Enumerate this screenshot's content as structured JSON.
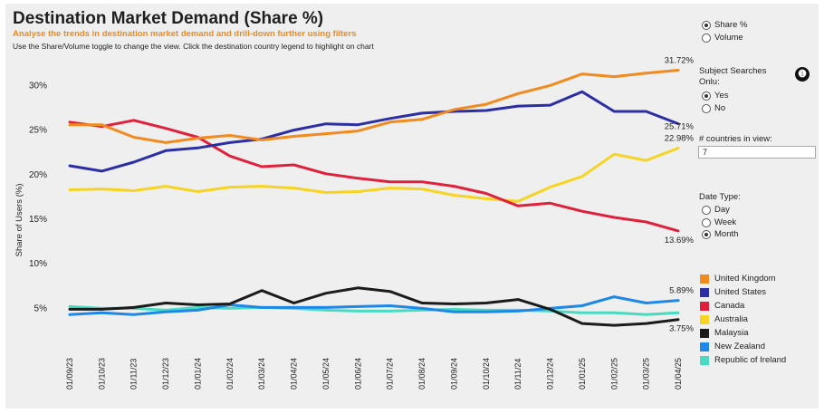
{
  "header": {
    "title": "Destination Market Demand (Share %)",
    "subtitle": "Analyse the trends in destination market demand and drill-down further using filters",
    "instructions": "Use the Share/Volume toggle to change the view. Click the destination country legend to highlight on chart"
  },
  "controls": {
    "measure": {
      "options": [
        "Share %",
        "Volume"
      ],
      "selected": "Share %"
    },
    "subject_searches": {
      "label": "Subject Searches Onlu:",
      "options": [
        "Yes",
        "No"
      ],
      "selected": "Yes"
    },
    "countries_in_view": {
      "label": "# countries in view:",
      "value": "7"
    },
    "date_type": {
      "label": "Date Type:",
      "options": [
        "Day",
        "Week",
        "Month"
      ],
      "selected": "Month"
    },
    "info_icon_glyph": "❶"
  },
  "chart_data": {
    "type": "line",
    "title": "Destination Market Demand (Share %)",
    "xlabel": "",
    "ylabel": "Share of Users (%)",
    "ylim": [
      2.5,
      33.5
    ],
    "yticks": [
      5,
      10,
      15,
      20,
      25,
      30
    ],
    "ytick_labels": [
      "5%",
      "10%",
      "15%",
      "20%",
      "25%",
      "30%"
    ],
    "x": [
      "01/09/23",
      "01/10/23",
      "01/11/23",
      "01/12/23",
      "01/01/24",
      "01/02/24",
      "01/03/24",
      "01/04/24",
      "01/05/24",
      "01/06/24",
      "01/07/24",
      "01/08/24",
      "01/09/24",
      "01/10/24",
      "01/11/24",
      "01/12/24",
      "01/01/25",
      "01/02/25",
      "01/03/25",
      "01/04/25"
    ],
    "series": [
      {
        "name": "United Kingdom",
        "color": "#f28a1d",
        "values": [
          25.6,
          25.6,
          24.2,
          23.6,
          24.1,
          24.4,
          23.9,
          24.3,
          24.6,
          24.9,
          25.9,
          26.2,
          27.3,
          27.9,
          29.1,
          30.0,
          31.3,
          31.0,
          31.4,
          31.72
        ],
        "end_label": "31.72%"
      },
      {
        "name": "United States",
        "color": "#2c2ea6",
        "values": [
          21.0,
          20.4,
          21.4,
          22.7,
          23.0,
          23.6,
          24.0,
          25.0,
          25.7,
          25.6,
          26.3,
          26.9,
          27.1,
          27.2,
          27.7,
          27.8,
          29.3,
          27.1,
          27.1,
          25.71
        ],
        "end_label": "25.71%"
      },
      {
        "name": "Canada",
        "color": "#e1213b",
        "values": [
          25.9,
          25.4,
          26.1,
          25.2,
          24.2,
          22.1,
          20.9,
          21.1,
          20.1,
          19.6,
          19.2,
          19.2,
          18.7,
          17.9,
          16.5,
          16.8,
          15.9,
          15.2,
          14.7,
          13.69
        ],
        "end_label": "13.69%"
      },
      {
        "name": "Australia",
        "color": "#f7d322",
        "values": [
          18.3,
          18.4,
          18.2,
          18.7,
          18.1,
          18.6,
          18.7,
          18.5,
          18.0,
          18.1,
          18.5,
          18.4,
          17.7,
          17.3,
          17.0,
          18.6,
          19.8,
          22.3,
          21.6,
          22.98
        ],
        "end_label": "22.98%"
      },
      {
        "name": "Malaysia",
        "color": "#1b1b1b",
        "values": [
          4.9,
          4.9,
          5.1,
          5.6,
          5.4,
          5.5,
          7.0,
          5.6,
          6.7,
          7.3,
          6.9,
          5.6,
          5.5,
          5.6,
          6.0,
          4.9,
          3.3,
          3.1,
          3.3,
          3.75
        ],
        "end_label": "3.75%"
      },
      {
        "name": "New Zealand",
        "color": "#1e88e8",
        "values": [
          4.3,
          4.5,
          4.3,
          4.6,
          4.8,
          5.4,
          5.1,
          5.1,
          5.1,
          5.2,
          5.3,
          5.0,
          4.6,
          4.6,
          4.7,
          5.0,
          5.3,
          6.3,
          5.6,
          5.89
        ],
        "end_label": "5.89%"
      },
      {
        "name": "Republic of Ireland",
        "color": "#48dbc1",
        "values": [
          5.2,
          5.0,
          5.0,
          4.8,
          5.1,
          5.0,
          5.1,
          5.0,
          4.8,
          4.7,
          4.7,
          4.8,
          4.9,
          4.8,
          4.8,
          4.7,
          4.5,
          4.5,
          4.3,
          4.5
        ],
        "end_label": ""
      }
    ]
  }
}
